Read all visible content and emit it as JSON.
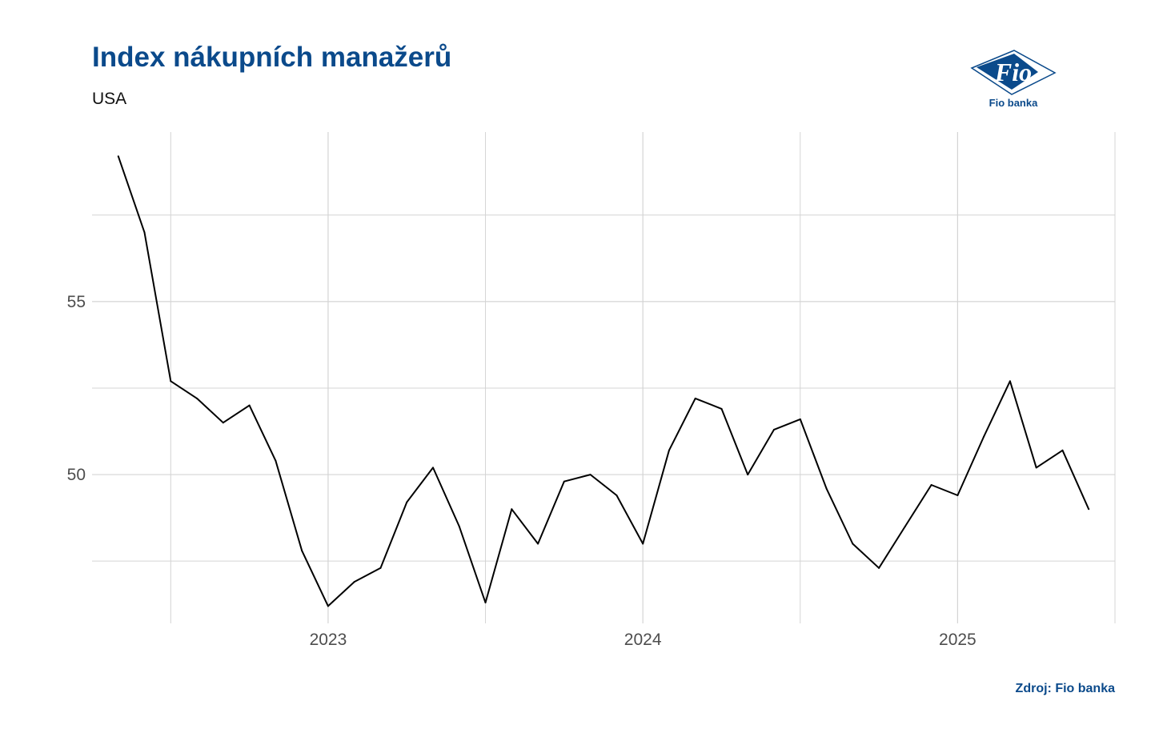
{
  "chart_data": {
    "type": "line",
    "title": "Index nákupních manažerů",
    "subtitle": "USA",
    "xlabel": "",
    "ylabel": "",
    "x_ticks": [
      "2023",
      "2024",
      "2025"
    ],
    "y_ticks": [
      "50",
      "55"
    ],
    "ylim": [
      45.7,
      59.9
    ],
    "xlim": [
      "2022-04",
      "2025-07"
    ],
    "grid": true,
    "legend": "none",
    "series": [
      {
        "color": "#000000",
        "x": [
          "2022-05",
          "2022-06",
          "2022-07",
          "2022-08",
          "2022-09",
          "2022-10",
          "2022-11",
          "2022-12",
          "2023-01",
          "2023-02",
          "2023-03",
          "2023-04",
          "2023-05",
          "2023-06",
          "2023-07",
          "2023-08",
          "2023-09",
          "2023-10",
          "2023-11",
          "2023-12",
          "2024-01",
          "2024-02",
          "2024-03",
          "2024-04",
          "2024-05",
          "2024-06",
          "2024-07",
          "2024-08",
          "2024-09",
          "2024-10",
          "2024-11",
          "2024-12",
          "2025-01",
          "2025-02",
          "2025-03",
          "2025-04",
          "2025-05",
          "2025-06"
        ],
        "values": [
          59.2,
          57.0,
          52.7,
          52.2,
          51.5,
          52.0,
          50.4,
          47.8,
          46.2,
          46.9,
          47.3,
          49.2,
          50.2,
          48.5,
          46.3,
          49.0,
          48.0,
          49.8,
          50.0,
          49.4,
          48.0,
          50.7,
          52.2,
          51.9,
          50.0,
          51.3,
          51.6,
          49.6,
          48.0,
          47.3,
          48.5,
          49.7,
          49.4,
          51.1,
          52.7,
          50.2,
          50.7,
          49.0
        ]
      }
    ]
  },
  "source": "Zdroj: Fio banka",
  "logo": {
    "mark_text": "Fio",
    "caption": "Fio banka"
  },
  "colors": {
    "brand": "#0b4a8b",
    "grid": "#d4d4d4",
    "line": "#000000",
    "tick_text": "#4d4d4d"
  }
}
